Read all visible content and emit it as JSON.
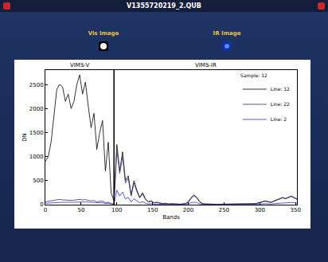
{
  "window": {
    "title": "V1355720219_2.QUB",
    "images": [
      "Vis Image",
      "IR Image"
    ]
  },
  "chart_data": {
    "type": "line",
    "x_label": "Bands",
    "y_label": "DN",
    "legend_title": "Sample: 12",
    "legend": "upper right",
    "grid": false,
    "xlim": [
      0,
      352
    ],
    "xticks": [
      0,
      50,
      100,
      150,
      200,
      250,
      300,
      350
    ],
    "ylim": [
      0,
      2800
    ],
    "yticks": [
      0,
      500,
      1000,
      1500,
      2000,
      2500
    ],
    "divider": 96,
    "annotations": [
      {
        "text": "VIMS-V",
        "x": 48
      },
      {
        "text": "VIMS-IR",
        "x": 225
      }
    ],
    "x": [
      0,
      4,
      8,
      12,
      16,
      20,
      24,
      28,
      32,
      36,
      40,
      44,
      48,
      52,
      56,
      60,
      64,
      68,
      72,
      76,
      80,
      84,
      88,
      92,
      96,
      100,
      104,
      108,
      112,
      116,
      120,
      124,
      128,
      132,
      136,
      140,
      144,
      148,
      152,
      156,
      160,
      164,
      168,
      172,
      176,
      180,
      184,
      188,
      192,
      196,
      200,
      204,
      208,
      212,
      216,
      220,
      224,
      228,
      232,
      236,
      240,
      244,
      248,
      252,
      256,
      260,
      264,
      268,
      272,
      276,
      280,
      284,
      288,
      292,
      296,
      300,
      304,
      308,
      312,
      316,
      320,
      324,
      328,
      332,
      336,
      340,
      344,
      348,
      352
    ],
    "series": [
      {
        "name": "Line: 12",
        "color": "#000000",
        "values": [
          900,
          1000,
          1300,
          1800,
          2400,
          2500,
          2450,
          2150,
          2300,
          2000,
          2150,
          2500,
          2700,
          2300,
          2550,
          2050,
          1600,
          1900,
          1150,
          1500,
          1750,
          700,
          1300,
          250,
          80,
          1250,
          700,
          1100,
          500,
          600,
          200,
          500,
          300,
          150,
          250,
          120,
          60,
          80,
          40,
          50,
          30,
          20,
          30,
          15,
          20,
          15,
          10,
          10,
          15,
          20,
          60,
          150,
          200,
          150,
          60,
          20,
          15,
          10,
          10,
          10,
          10,
          10,
          10,
          10,
          10,
          10,
          15,
          20,
          15,
          10,
          10,
          10,
          15,
          20,
          30,
          50,
          60,
          80,
          60,
          50,
          80,
          100,
          120,
          150,
          130,
          160,
          180,
          150,
          120
        ]
      },
      {
        "name": "Line: 22",
        "color": "#3a2c6e",
        "values": [
          60,
          70,
          80,
          90,
          100,
          110,
          100,
          95,
          100,
          90,
          95,
          100,
          110,
          100,
          105,
          90,
          80,
          85,
          60,
          70,
          75,
          40,
          50,
          20,
          10,
          1150,
          650,
          1000,
          450,
          550,
          180,
          450,
          270,
          140,
          220,
          110,
          55,
          70,
          35,
          45,
          25,
          18,
          25,
          12,
          18,
          12,
          8,
          8,
          12,
          18,
          50,
          130,
          180,
          140,
          55,
          18,
          12,
          8,
          8,
          8,
          8,
          8,
          8,
          8,
          8,
          8,
          12,
          18,
          12,
          8,
          8,
          8,
          12,
          18,
          25,
          45,
          55,
          70,
          55,
          45,
          70,
          90,
          110,
          140,
          120,
          150,
          170,
          140,
          110
        ]
      },
      {
        "name": "Line: 2",
        "color": "#3030d0",
        "values": [
          30,
          35,
          40,
          45,
          50,
          55,
          50,
          50,
          55,
          50,
          50,
          55,
          60,
          55,
          55,
          50,
          45,
          45,
          35,
          40,
          40,
          25,
          30,
          15,
          8,
          300,
          180,
          260,
          120,
          150,
          60,
          120,
          80,
          40,
          60,
          30,
          15,
          20,
          10,
          12,
          8,
          5,
          8,
          4,
          5,
          4,
          3,
          3,
          4,
          5,
          15,
          40,
          50,
          40,
          15,
          5,
          4,
          3,
          3,
          3,
          3,
          3,
          3,
          3,
          3,
          3,
          4,
          5,
          4,
          3,
          3,
          3,
          4,
          5,
          8,
          12,
          15,
          20,
          15,
          12,
          20,
          25,
          30,
          40,
          35,
          40,
          45,
          40,
          30
        ]
      }
    ]
  }
}
